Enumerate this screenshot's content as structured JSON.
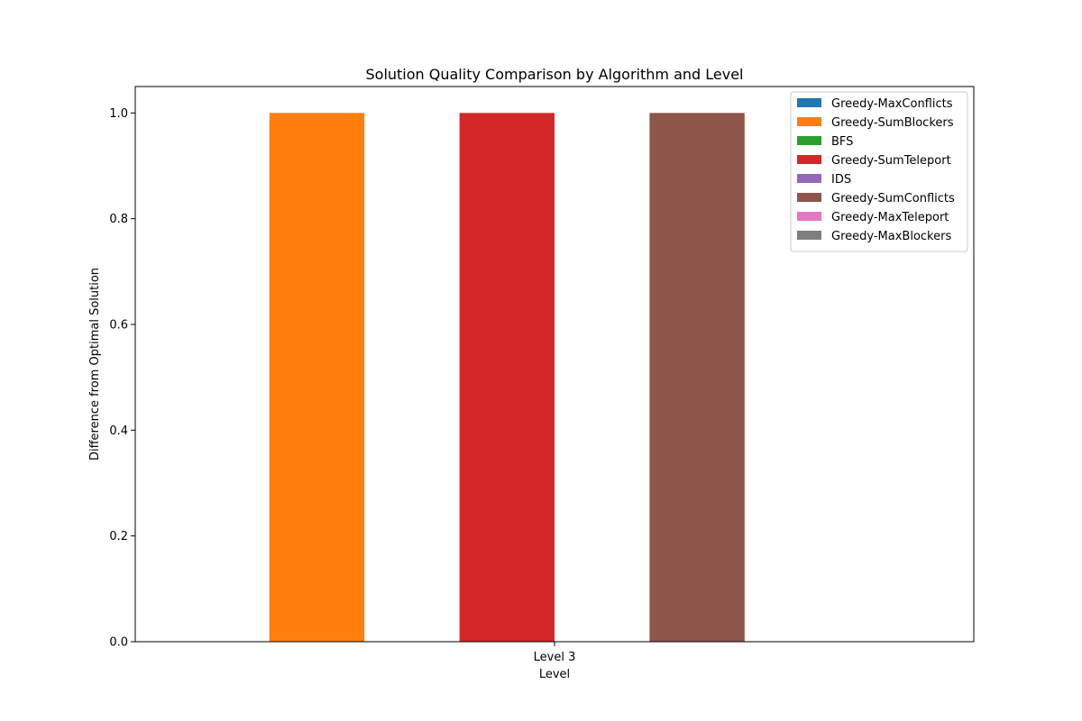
{
  "chart_data": {
    "type": "bar",
    "title": "Solution Quality Comparison by Algorithm and Level",
    "xlabel": "Level",
    "ylabel": "Difference from Optimal Solution",
    "categories": [
      "Level 3"
    ],
    "ylim": [
      0,
      1.05
    ],
    "yticks": [
      "0.0",
      "0.2",
      "0.4",
      "0.6",
      "0.8",
      "1.0"
    ],
    "grid": false,
    "legend_position": "top-right",
    "series": [
      {
        "name": "Greedy-MaxConflicts",
        "color": "#1f77b4",
        "values": [
          0
        ]
      },
      {
        "name": "Greedy-SumBlockers",
        "color": "#ff7f0e",
        "values": [
          1.0
        ]
      },
      {
        "name": "BFS",
        "color": "#2ca02c",
        "values": [
          0
        ]
      },
      {
        "name": "Greedy-SumTeleport",
        "color": "#d62728",
        "values": [
          1.0
        ]
      },
      {
        "name": "IDS",
        "color": "#9467bd",
        "values": [
          0
        ]
      },
      {
        "name": "Greedy-SumConflicts",
        "color": "#8c564b",
        "values": [
          1.0
        ]
      },
      {
        "name": "Greedy-MaxTeleport",
        "color": "#e377c2",
        "values": [
          0
        ]
      },
      {
        "name": "Greedy-MaxBlockers",
        "color": "#7f7f7f",
        "values": [
          0
        ]
      }
    ]
  }
}
